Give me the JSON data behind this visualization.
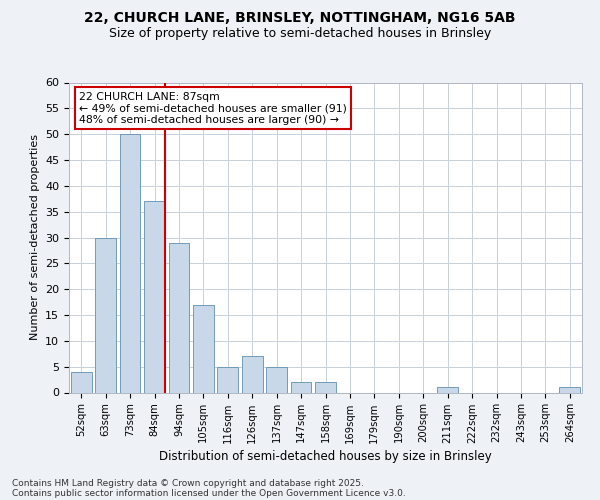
{
  "title_line1": "22, CHURCH LANE, BRINSLEY, NOTTINGHAM, NG16 5AB",
  "title_line2": "Size of property relative to semi-detached houses in Brinsley",
  "xlabel": "Distribution of semi-detached houses by size in Brinsley",
  "ylabel": "Number of semi-detached properties",
  "categories": [
    "52sqm",
    "63sqm",
    "73sqm",
    "84sqm",
    "94sqm",
    "105sqm",
    "116sqm",
    "126sqm",
    "137sqm",
    "147sqm",
    "158sqm",
    "169sqm",
    "179sqm",
    "190sqm",
    "200sqm",
    "211sqm",
    "222sqm",
    "232sqm",
    "243sqm",
    "253sqm",
    "264sqm"
  ],
  "values": [
    4,
    30,
    50,
    37,
    29,
    17,
    5,
    7,
    5,
    2,
    2,
    0,
    0,
    0,
    0,
    1,
    0,
    0,
    0,
    0,
    1
  ],
  "bar_color": "#c8d8e8",
  "bar_edge_color": "#6090b0",
  "vline_x_index": 3,
  "vline_color": "#cc0000",
  "annotation_text": "22 CHURCH LANE: 87sqm\n← 49% of semi-detached houses are smaller (91)\n48% of semi-detached houses are larger (90) →",
  "annotation_box_color": "#cc0000",
  "ylim": [
    0,
    60
  ],
  "yticks": [
    0,
    5,
    10,
    15,
    20,
    25,
    30,
    35,
    40,
    45,
    50,
    55,
    60
  ],
  "footer_line1": "Contains HM Land Registry data © Crown copyright and database right 2025.",
  "footer_line2": "Contains public sector information licensed under the Open Government Licence v3.0.",
  "bg_color": "#eef2f7",
  "plot_bg_color": "#ffffff",
  "grid_color": "#c8d0da",
  "title1_fontsize": 10,
  "title2_fontsize": 9
}
